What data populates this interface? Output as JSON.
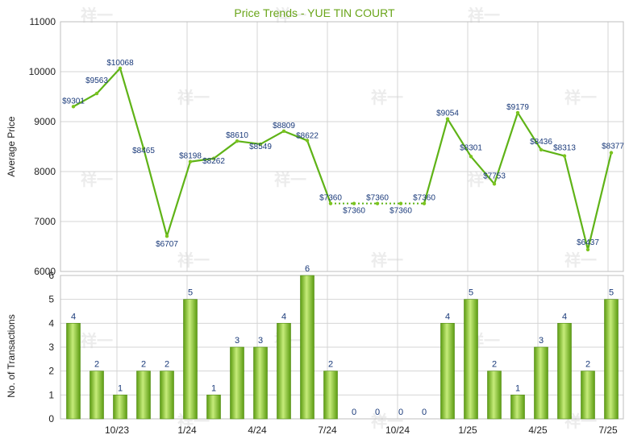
{
  "chart_data": [
    {
      "type": "line",
      "title": "Price Trends - YUE TIN COURT",
      "ylabel": "Average Price",
      "ylim": [
        6000,
        11000
      ],
      "yticks": [
        6000,
        7000,
        8000,
        9000,
        10000,
        11000
      ],
      "grid": true,
      "series": [
        {
          "values": [
            9301,
            9563,
            10068,
            8465,
            6707,
            8198,
            8262,
            8610,
            8549,
            8809,
            8622,
            7360,
            7360,
            7360,
            7360,
            7360,
            9054,
            8301,
            7753,
            9179,
            8436,
            8313,
            6437,
            8377
          ],
          "labels": [
            "$9301",
            "$9563",
            "$10068",
            "$8465",
            "$6707",
            "$8198",
            "$8262",
            "$8610",
            "$8549",
            "$8809",
            "$8622",
            "$7360",
            "$7360",
            "$7360",
            "$7360",
            "$7360",
            "$9054",
            "$8301",
            "$7753",
            "$9179",
            "$8436",
            "$8313",
            "$6437",
            "$8377"
          ],
          "interpolated": [
            false,
            false,
            false,
            false,
            false,
            false,
            false,
            false,
            false,
            false,
            false,
            false,
            true,
            true,
            true,
            false,
            false,
            false,
            false,
            false,
            false,
            false,
            false,
            false
          ]
        }
      ]
    },
    {
      "type": "bar",
      "ylabel": "No. of Transactions",
      "ylim": [
        0,
        6
      ],
      "yticks": [
        0,
        1,
        2,
        3,
        4,
        5,
        6
      ],
      "grid": true,
      "xtick_labels": [
        "10/23",
        "1/24",
        "4/24",
        "7/24",
        "10/24",
        "1/25",
        "4/25",
        "7/25"
      ],
      "values": [
        4,
        2,
        1,
        2,
        2,
        5,
        1,
        3,
        3,
        4,
        6,
        2,
        0,
        0,
        0,
        0,
        4,
        5,
        2,
        1,
        3,
        4,
        2,
        5
      ]
    }
  ],
  "colors": {
    "line": "#5fb317",
    "marker": "#7cc41f",
    "bar_dark": "#5c9c12",
    "bar_light": "#c6ec7a",
    "grid": "#d4d4d4",
    "title": "#6aa51a",
    "label": "#1a3a7a"
  }
}
